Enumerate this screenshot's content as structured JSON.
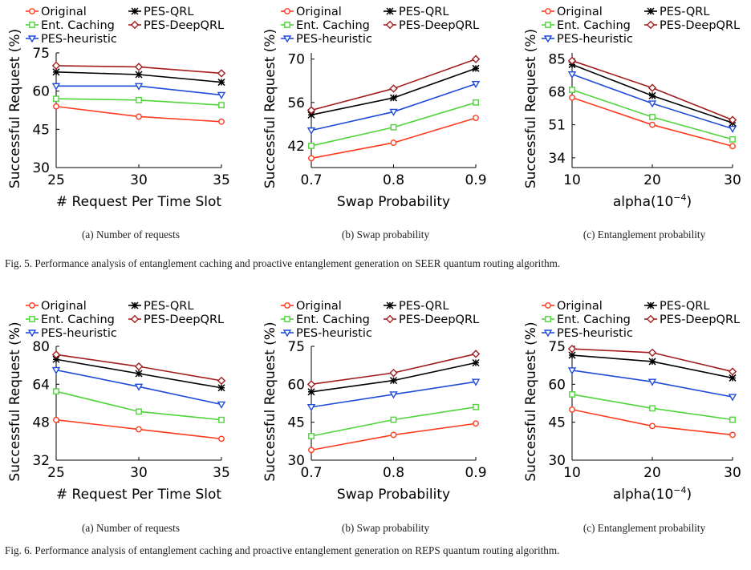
{
  "figures": [
    {
      "caption": "Fig. 5.  Performance analysis of entanglement caching and proactive entanglement generation on SEER quantum routing algorithm.",
      "panels": [
        {
          "sublabel": "(a) Number of requests",
          "chart_data": {
            "type": "line",
            "xlabel": "# Request Per Time Slot",
            "ylabel": "Successful Request (%)",
            "x": [
              25,
              30,
              35
            ],
            "x_ticks": [
              "25",
              "30",
              "35"
            ],
            "ylim": [
              30,
              75
            ],
            "y_ticks": [
              "30",
              "45",
              "60",
              "75"
            ],
            "grid": false,
            "legend": "top",
            "series": [
              {
                "name": "Original",
                "values": [
                  54.0,
                  50.0,
                  48.0
                ]
              },
              {
                "name": "Ent. Caching",
                "values": [
                  57.0,
                  56.5,
                  54.5
                ]
              },
              {
                "name": "PES-heuristic",
                "values": [
                  62.0,
                  62.0,
                  58.5
                ]
              },
              {
                "name": "PES-QRL",
                "values": [
                  67.5,
                  66.5,
                  63.5
                ]
              },
              {
                "name": "PES-DeepQRL",
                "values": [
                  70.0,
                  69.5,
                  67.0
                ]
              }
            ]
          }
        },
        {
          "sublabel": "(b) Swap probability",
          "chart_data": {
            "type": "line",
            "xlabel": "Swap Probability",
            "ylabel": "Successful Request (%)",
            "x": [
              0.7,
              0.8,
              0.9
            ],
            "x_ticks": [
              "0.7",
              "0.8",
              "0.9"
            ],
            "ylim": [
              35,
              72
            ],
            "y_ticks": [
              "42",
              "56",
              "70"
            ],
            "grid": false,
            "legend": "top",
            "series": [
              {
                "name": "Original",
                "values": [
                  38.0,
                  43.0,
                  51.0
                ]
              },
              {
                "name": "Ent. Caching",
                "values": [
                  42.0,
                  48.0,
                  56.0
                ]
              },
              {
                "name": "PES-heuristic",
                "values": [
                  47.0,
                  53.0,
                  62.0
                ]
              },
              {
                "name": "PES-QRL",
                "values": [
                  52.0,
                  57.5,
                  67.0
                ]
              },
              {
                "name": "PES-DeepQRL",
                "values": [
                  53.5,
                  60.5,
                  70.0
                ]
              }
            ]
          }
        },
        {
          "sublabel": "(c) Entanglement probability",
          "chart_data": {
            "type": "line",
            "xlabel": "alpha(10",
            "xlabel_sup": "−4",
            "xlabel_suffix": ")",
            "ylabel": "Successful Request (%)",
            "x": [
              10,
              20,
              30
            ],
            "x_ticks": [
              "10",
              "20",
              "30"
            ],
            "ylim": [
              29,
              88
            ],
            "y_ticks": [
              "34",
              "51",
              "68",
              "85"
            ],
            "grid": false,
            "legend": "top",
            "series": [
              {
                "name": "Original",
                "values": [
                  65.0,
                  51.0,
                  40.0
                ]
              },
              {
                "name": "Ent. Caching",
                "values": [
                  69.0,
                  55.0,
                  43.5
                ]
              },
              {
                "name": "PES-heuristic",
                "values": [
                  77.0,
                  62.0,
                  49.0
                ]
              },
              {
                "name": "PES-QRL",
                "values": [
                  82.0,
                  66.0,
                  52.0
                ]
              },
              {
                "name": "PES-DeepQRL",
                "values": [
                  84.0,
                  70.0,
                  53.5
                ]
              }
            ]
          }
        }
      ]
    },
    {
      "caption": "Fig. 6.  Performance analysis of entanglement caching and proactive entanglement generation on REPS quantum routing algorithm.",
      "panels": [
        {
          "sublabel": "(a) Number of requests",
          "chart_data": {
            "type": "line",
            "xlabel": "# Request Per Time Slot",
            "ylabel": "Successful Request (%)",
            "x": [
              25,
              30,
              35
            ],
            "x_ticks": [
              "25",
              "30",
              "35"
            ],
            "ylim": [
              32,
              80
            ],
            "y_ticks": [
              "32",
              "48",
              "64",
              "80"
            ],
            "grid": false,
            "legend": "top",
            "series": [
              {
                "name": "Original",
                "values": [
                  49.0,
                  45.0,
                  41.0
                ]
              },
              {
                "name": "Ent. Caching",
                "values": [
                  61.0,
                  52.5,
                  49.0
                ]
              },
              {
                "name": "PES-heuristic",
                "values": [
                  70.0,
                  63.0,
                  55.5
                ]
              },
              {
                "name": "PES-QRL",
                "values": [
                  74.5,
                  68.5,
                  62.5
                ]
              },
              {
                "name": "PES-DeepQRL",
                "values": [
                  76.5,
                  71.5,
                  65.5
                ]
              }
            ]
          }
        },
        {
          "sublabel": "(b) Swap probability",
          "chart_data": {
            "type": "line",
            "xlabel": "Swap Probability",
            "ylabel": "Successful Request (%)",
            "x": [
              0.7,
              0.8,
              0.9
            ],
            "x_ticks": [
              "0.7",
              "0.8",
              "0.9"
            ],
            "ylim": [
              30,
              75
            ],
            "y_ticks": [
              "30",
              "45",
              "60",
              "75"
            ],
            "grid": false,
            "legend": "top",
            "series": [
              {
                "name": "Original",
                "values": [
                  34.0,
                  40.0,
                  44.5
                ]
              },
              {
                "name": "Ent. Caching",
                "values": [
                  39.5,
                  46.0,
                  51.0
                ]
              },
              {
                "name": "PES-heuristic",
                "values": [
                  51.0,
                  56.0,
                  61.0
                ]
              },
              {
                "name": "PES-QRL",
                "values": [
                  57.0,
                  61.5,
                  68.5
                ]
              },
              {
                "name": "PES-DeepQRL",
                "values": [
                  60.0,
                  64.5,
                  72.0
                ]
              }
            ]
          }
        },
        {
          "sublabel": "(c) Entanglement probability",
          "chart_data": {
            "type": "line",
            "xlabel": "alpha(10",
            "xlabel_sup": "−4",
            "xlabel_suffix": ")",
            "ylabel": "Successful Request (%)",
            "x": [
              10,
              20,
              30
            ],
            "x_ticks": [
              "10",
              "20",
              "30"
            ],
            "ylim": [
              30,
              75
            ],
            "y_ticks": [
              "30",
              "45",
              "60",
              "75"
            ],
            "grid": false,
            "legend": "top",
            "series": [
              {
                "name": "Original",
                "values": [
                  50.0,
                  43.5,
                  40.0
                ]
              },
              {
                "name": "Ent. Caching",
                "values": [
                  56.0,
                  50.5,
                  46.0
                ]
              },
              {
                "name": "PES-heuristic",
                "values": [
                  65.5,
                  61.0,
                  55.0
                ]
              },
              {
                "name": "PES-QRL",
                "values": [
                  71.5,
                  69.0,
                  62.5
                ]
              },
              {
                "name": "PES-DeepQRL",
                "values": [
                  74.0,
                  72.5,
                  65.0
                ]
              }
            ]
          }
        }
      ]
    }
  ],
  "series_style": {
    "Original": {
      "color": "#ff3b1f",
      "marker": "circle"
    },
    "Ent. Caching": {
      "color": "#4fd43a",
      "marker": "square"
    },
    "PES-heuristic": {
      "color": "#1f4bd8",
      "marker": "triangle-down"
    },
    "PES-QRL": {
      "color": "#000000",
      "marker": "star"
    },
    "PES-DeepQRL": {
      "color": "#a11d1d",
      "marker": "diamond"
    }
  }
}
